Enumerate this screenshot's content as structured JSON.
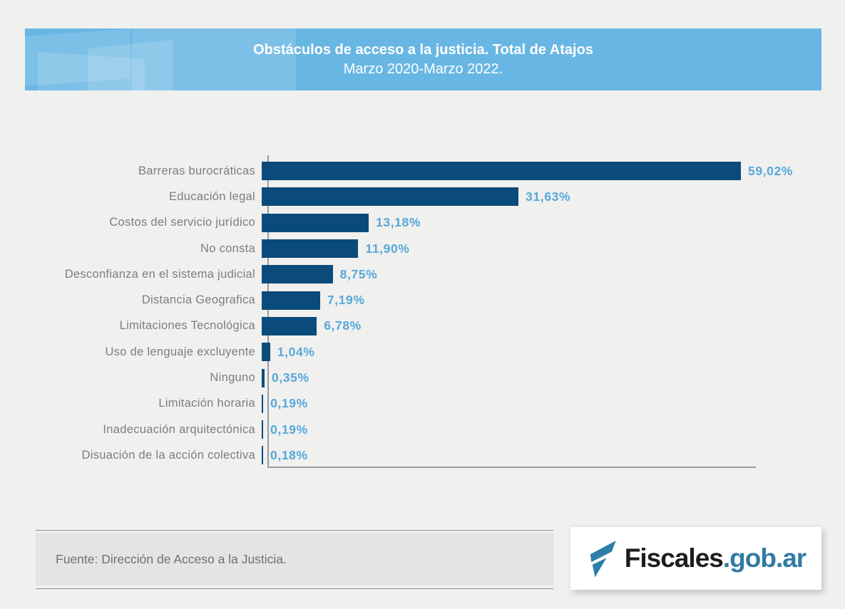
{
  "header": {
    "title": "Obstáculos de acceso a la justicia. Total de Atajos",
    "subtitle": "Marzo 2020-Marzo 2022.",
    "bg_color": "#68b6e3",
    "text_color": "#ffffff"
  },
  "chart_data": {
    "type": "bar",
    "orientation": "horizontal",
    "title": "Obstáculos de acceso a la justicia. Total de Atajos",
    "subtitle": "Marzo 2020-Marzo 2022.",
    "categories": [
      "Barreras burocráticas",
      "Educación legal",
      "Costos del servicio jurídico",
      "No consta",
      "Desconfianza en el sistema judicial",
      "Distancia Geografica",
      "Limitaciones Tecnológica",
      "Uso de lenguaje excluyente",
      "Ninguno",
      "Limitación horaria",
      "Inadecuación arquitectónica",
      "Disuación de la acción colectiva"
    ],
    "values": [
      59.02,
      31.63,
      13.18,
      11.9,
      8.75,
      7.19,
      6.78,
      1.04,
      0.35,
      0.19,
      0.19,
      0.18
    ],
    "value_labels": [
      "59,02%",
      "31,63%",
      "13,18%",
      "11,90%",
      "8,75%",
      "7,19%",
      "6,78%",
      "1,04%",
      "0,35%",
      "0,19%",
      "0,19%",
      "0,18%"
    ],
    "xlabel": "",
    "ylabel": "",
    "xlim": [
      0,
      60
    ],
    "grid": false,
    "legend": false,
    "bar_color": "#0b4b7c",
    "value_label_color": "#56a8d9",
    "category_label_color": "#7d7d7d",
    "axis_color": "#9b9b9b"
  },
  "footer": {
    "source": "Fuente: Dirección de Acceso a la Justicia.",
    "logo": {
      "text_black": "Fiscales",
      "text_blue": ".gob.ar",
      "icon": "fiscales-f-icon",
      "blue": "#2f7ba4",
      "black": "#1d1d1b"
    }
  }
}
